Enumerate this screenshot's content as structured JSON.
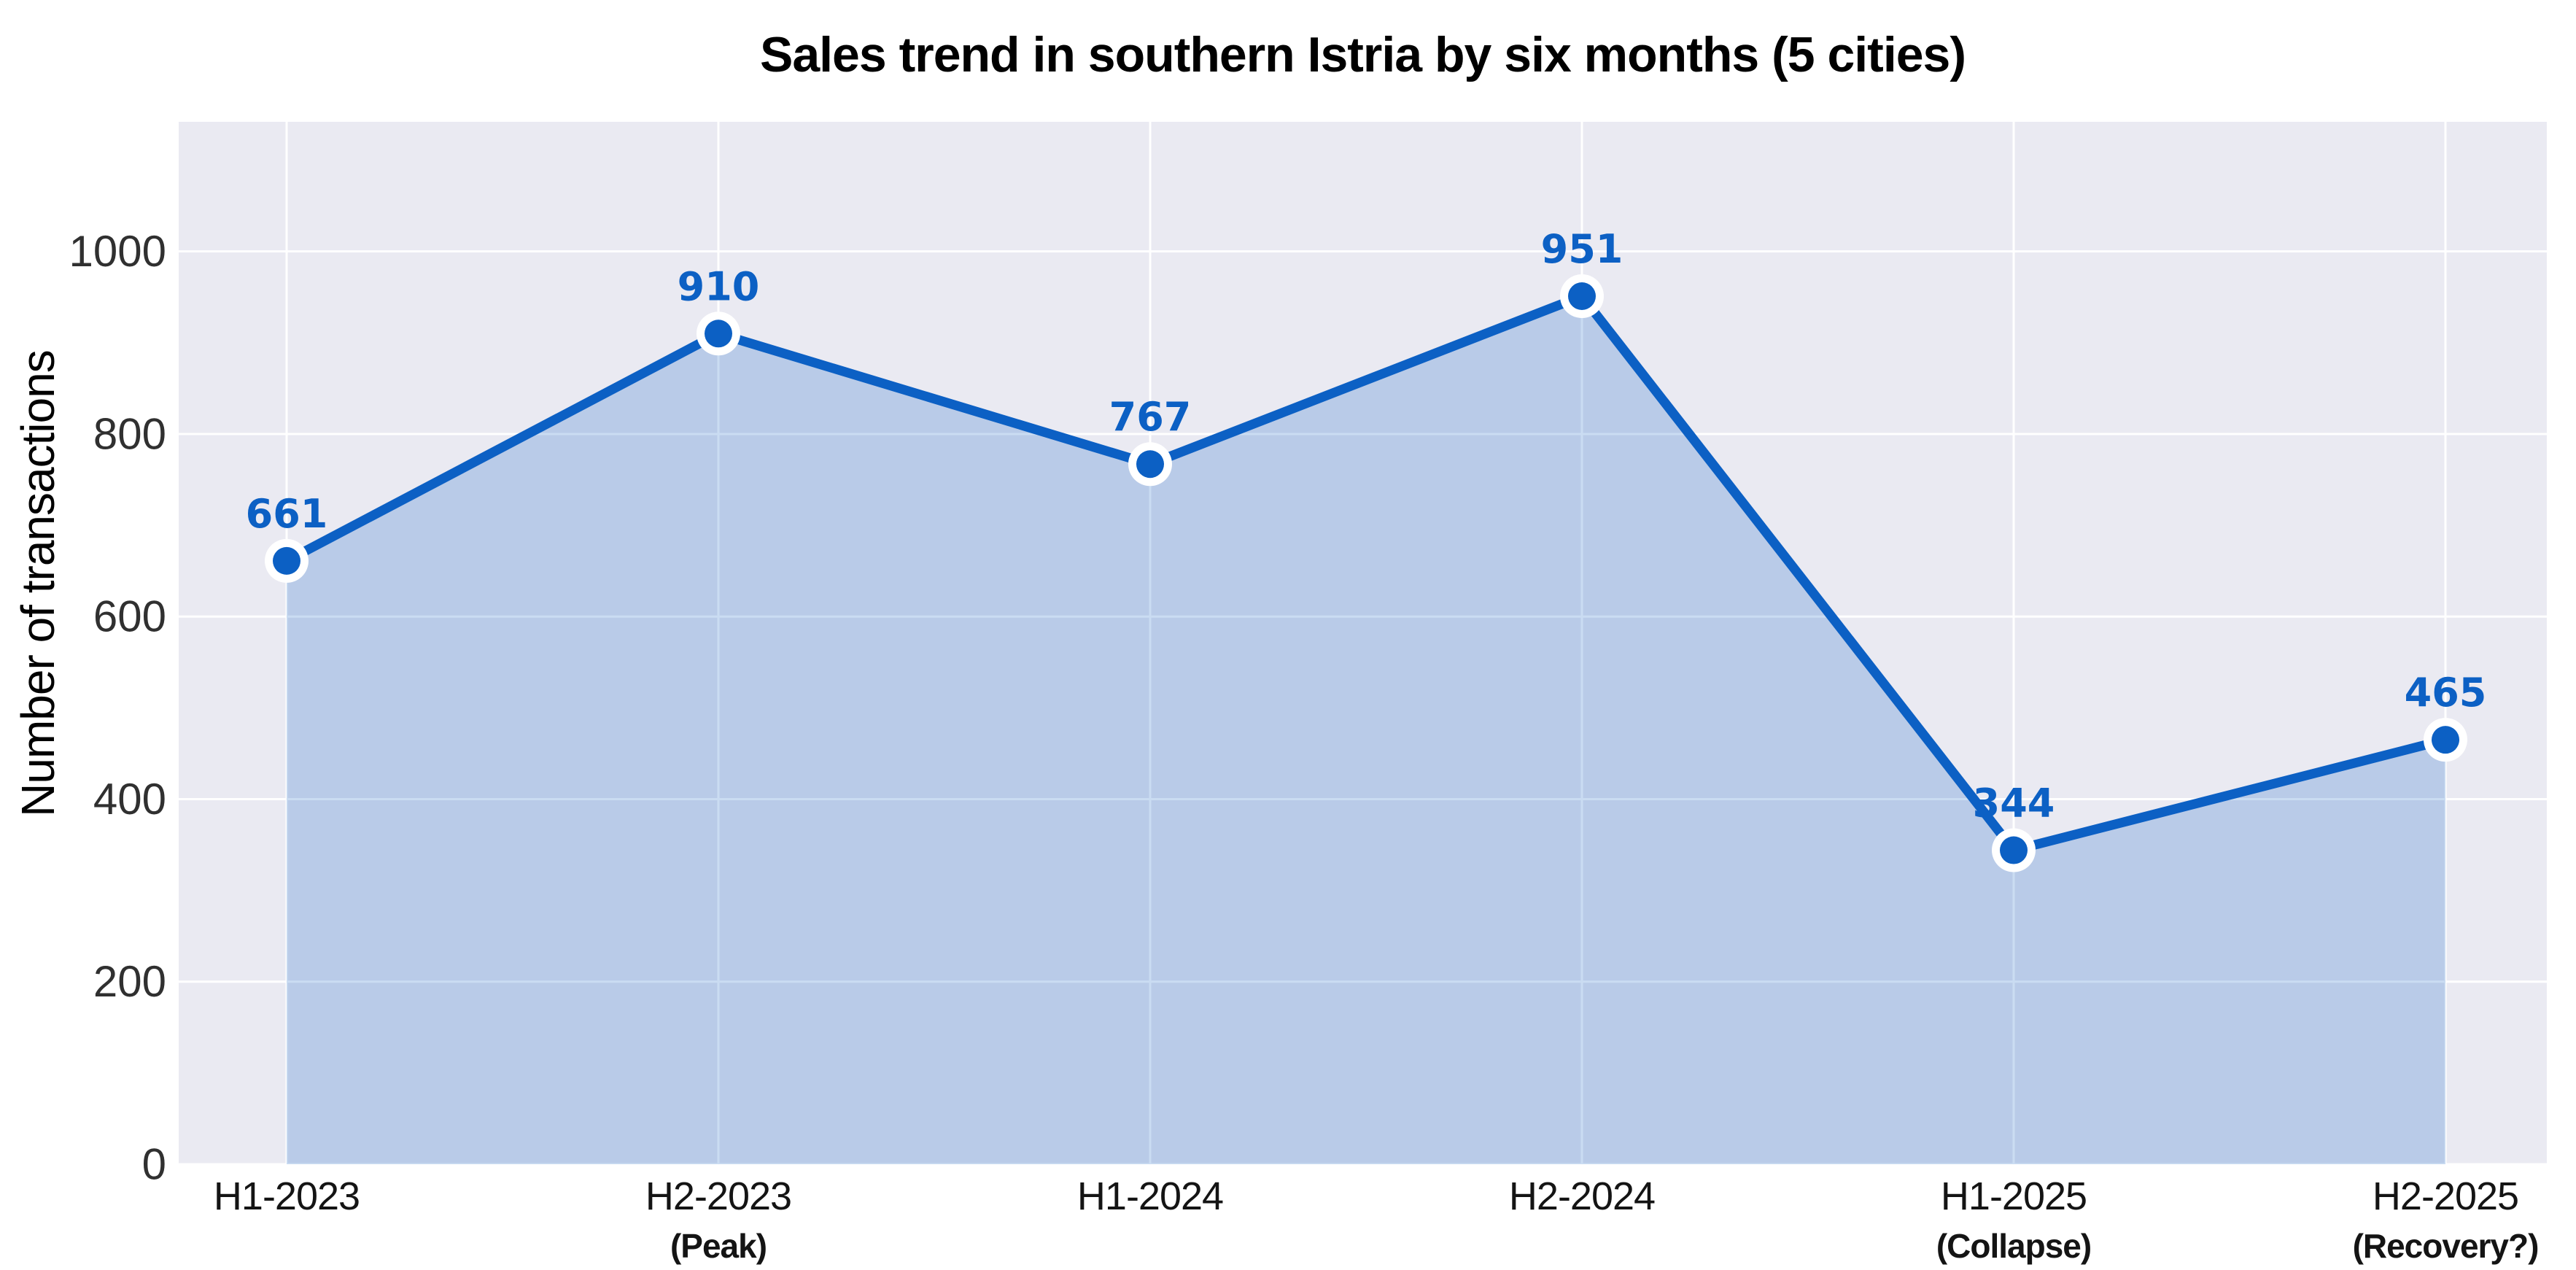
{
  "chart_data": {
    "type": "line",
    "subtype": "line-with-area-fill-and-markers",
    "title": "Sales trend in southern Istria by six months (5 cities)",
    "xlabel": "",
    "ylabel": "Number of transactions",
    "categories": [
      "H1-2023",
      "H2-2023",
      "H1-2024",
      "H2-2024",
      "H1-2025",
      "H2-2025"
    ],
    "category_sublabels": [
      "",
      "(Peak)",
      "",
      "",
      "(Collapse)",
      "(Recovery?)"
    ],
    "values": [
      661,
      910,
      767,
      951,
      344,
      465
    ],
    "data_labels_shown": true,
    "ylim": [
      0,
      1142
    ],
    "yticks": [
      0,
      200,
      400,
      600,
      800,
      1000
    ],
    "grid": "both",
    "legend": "none",
    "colors": {
      "line": "#0C60C4",
      "marker_fill": "#0C60C4",
      "marker_edge": "#FFFFFF",
      "area_fill": "#0C60C4",
      "area_opacity": 0.22,
      "plot_background": "#EAEAF2",
      "gridline": "#FFFFFF",
      "y_tick_text": "#303030",
      "x_tick_text": "#141414",
      "title_text": "#000000",
      "data_label_text": "#0C60C4"
    }
  }
}
